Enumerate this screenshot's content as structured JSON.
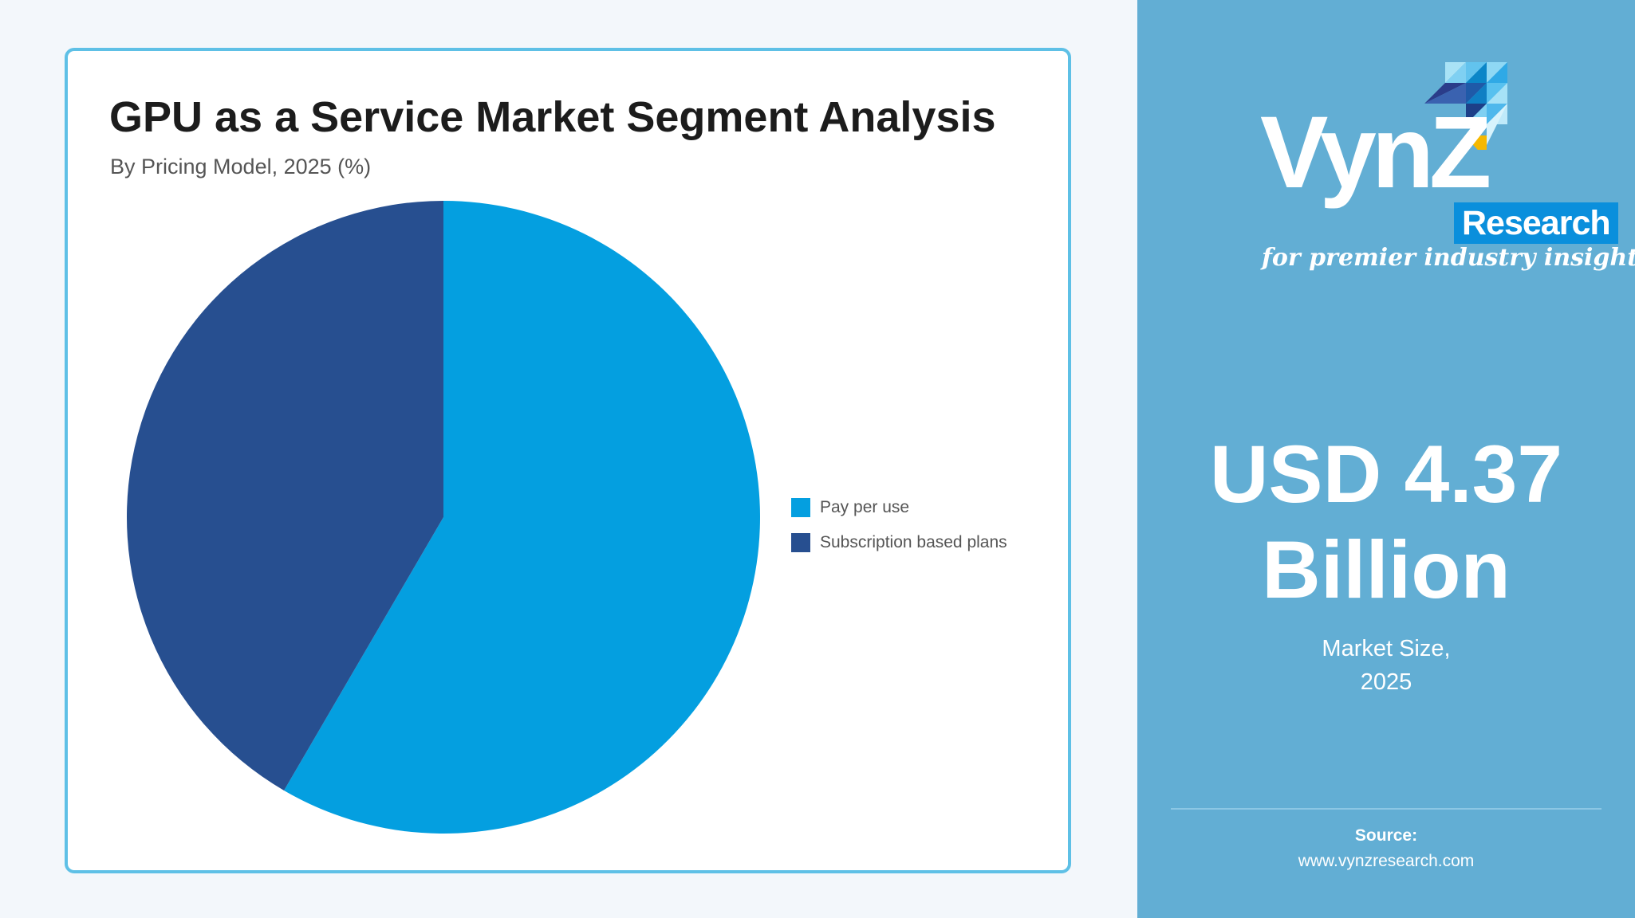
{
  "chart_data": {
    "type": "pie",
    "title": "GPU as a Service Market Segment Analysis",
    "subtitle": "By Pricing Model, 2025 (%)",
    "categories": [
      "Pay per use",
      "Subscription based plans"
    ],
    "values": [
      58.4,
      41.6
    ],
    "colors": [
      "#049fe0",
      "#274f90"
    ],
    "start_angle_deg": 0,
    "direction": "clockwise",
    "legend_position": "right"
  },
  "sidebar": {
    "logo": {
      "word": "VynZ",
      "research": "Research",
      "tagline": "for premier industry insights"
    },
    "market_value": "USD 4.37 Billion",
    "market_label": "Market Size,",
    "market_year": "2025",
    "source_label": "Source:",
    "source_url": "www.vynzresearch.com"
  }
}
